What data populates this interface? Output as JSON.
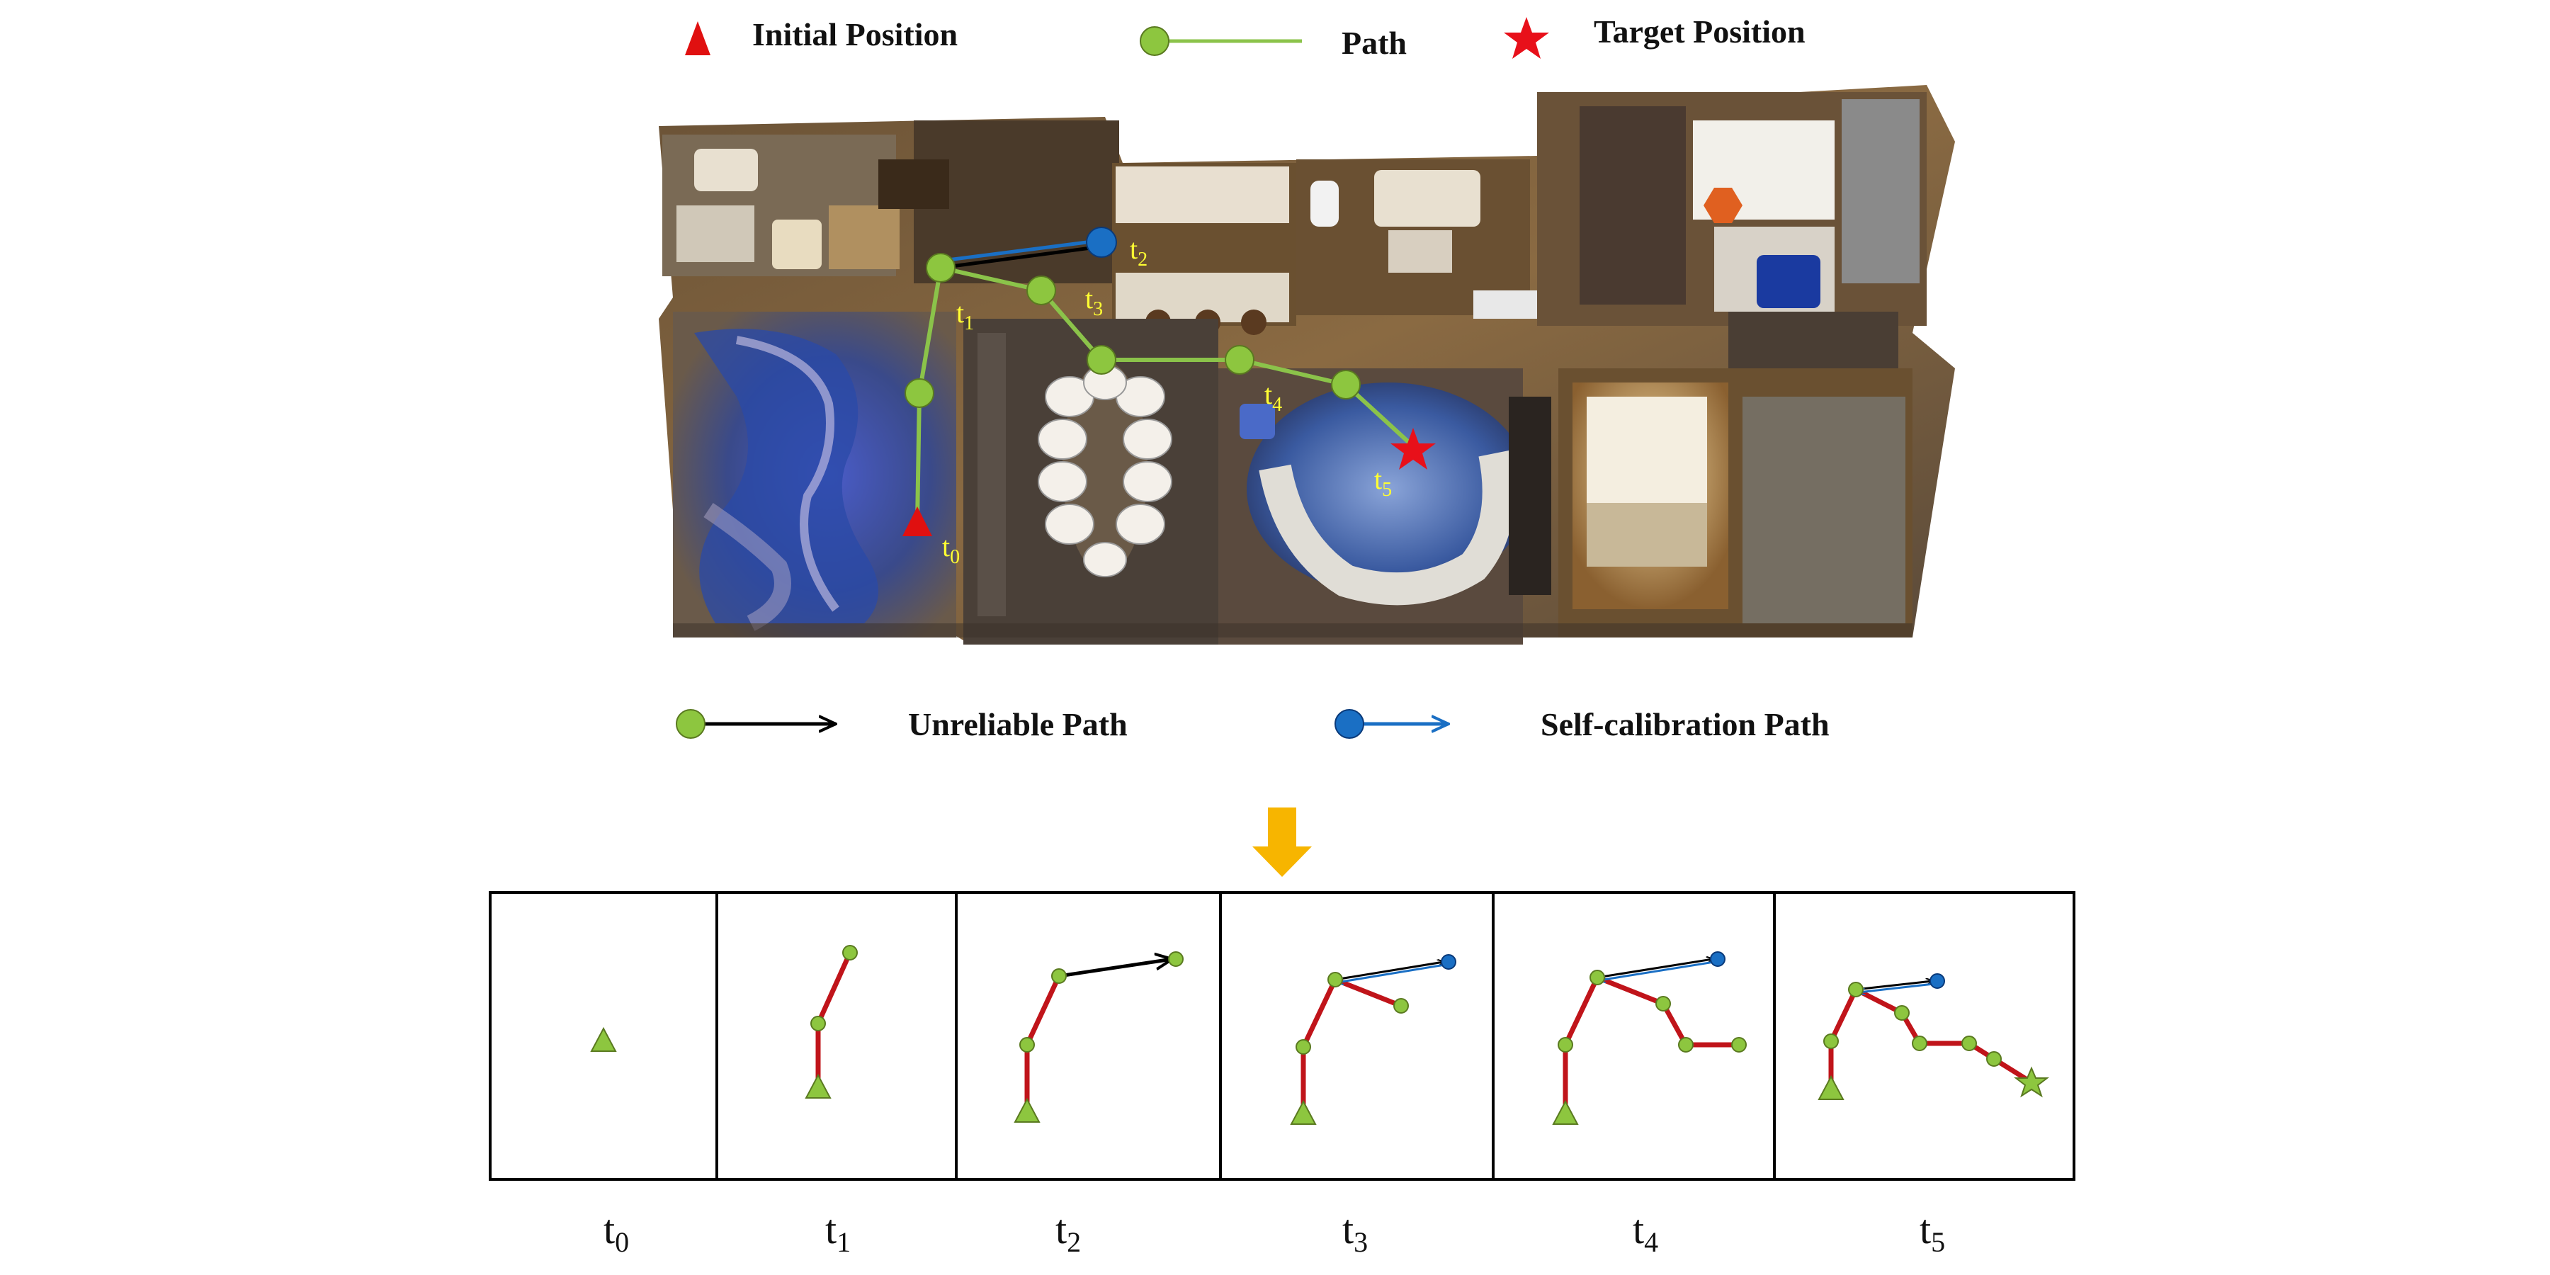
{
  "legend_top": {
    "initial": "Initial Position",
    "path": "Path",
    "target": "Target Position"
  },
  "legend_bottom": {
    "unreliable": "Unreliable Path",
    "self_calibration": "Self-calibration Path"
  },
  "map_labels": [
    {
      "base": "t",
      "sub": "0"
    },
    {
      "base": "t",
      "sub": "1"
    },
    {
      "base": "t",
      "sub": "2"
    },
    {
      "base": "t",
      "sub": "3"
    },
    {
      "base": "t",
      "sub": "4"
    },
    {
      "base": "t",
      "sub": "5"
    }
  ],
  "panel_labels": [
    {
      "base": "t",
      "sub": "0"
    },
    {
      "base": "t",
      "sub": "1"
    },
    {
      "base": "t",
      "sub": "2"
    },
    {
      "base": "t",
      "sub": "3"
    },
    {
      "base": "t",
      "sub": "4"
    },
    {
      "base": "t",
      "sub": "5"
    }
  ],
  "colors": {
    "path_green": "#8bc34a",
    "node_green": "#8dc63f",
    "initial_red": "#e01010",
    "target_red": "#e8101a",
    "unreliable_black": "#000000",
    "calibration_blue": "#1a6fc4",
    "panel_red_path": "#c0141a",
    "arrow_yellow": "#f7b500",
    "map_label_yellow": "#ffff33"
  }
}
